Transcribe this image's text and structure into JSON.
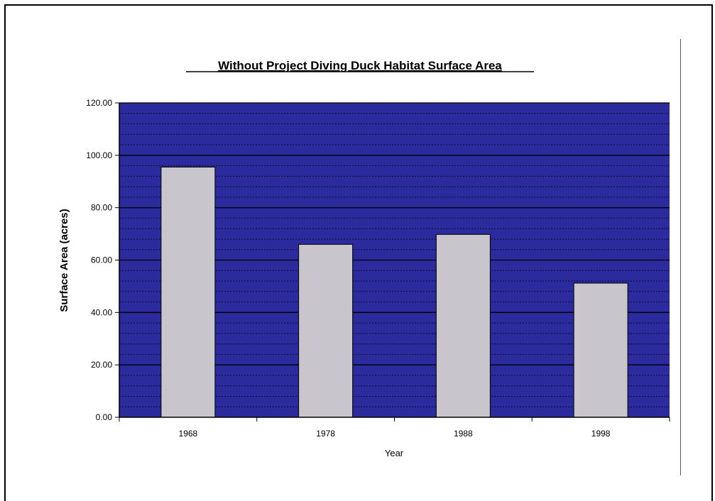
{
  "chart_data": {
    "type": "bar",
    "title": "Without Project Diving Duck Habitat Surface Area",
    "xlabel": "Year",
    "ylabel": "Surface Area (acres)",
    "categories": [
      "1968",
      "1978",
      "1988",
      "1998"
    ],
    "values": [
      95.5,
      66.0,
      69.8,
      51.2
    ],
    "ylim": [
      0,
      120
    ],
    "yticks": [
      "0.00",
      "20.00",
      "40.00",
      "60.00",
      "80.00",
      "100.00",
      "120.00"
    ],
    "grid": true,
    "legend": "none",
    "colors": {
      "plot_background": "#2B2B9E",
      "bar_fill": "#C8C6CC",
      "major_gridline": "#000000",
      "minor_gridline": "#000000"
    }
  }
}
